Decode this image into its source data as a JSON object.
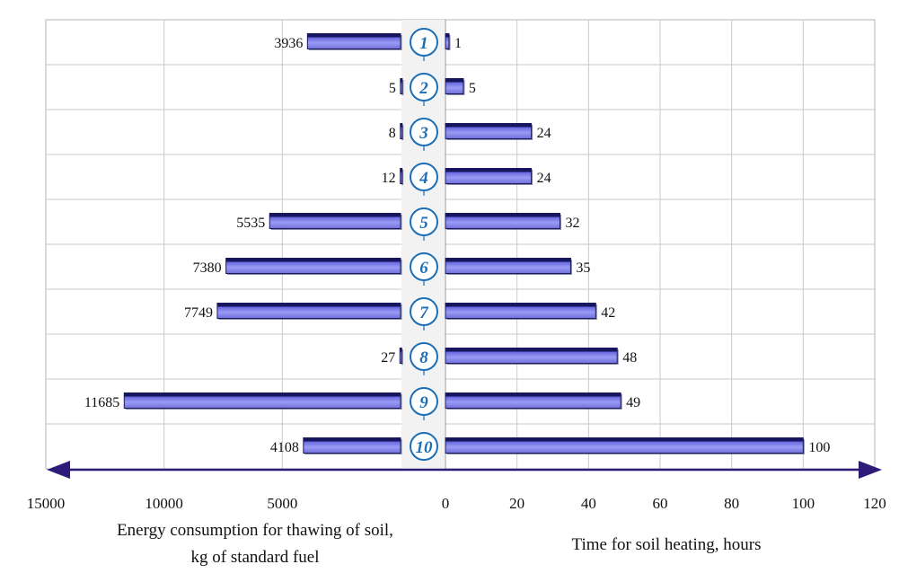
{
  "chart_data": {
    "type": "bar",
    "categories": [
      "1",
      "2",
      "3",
      "4",
      "5",
      "6",
      "7",
      "8",
      "9",
      "10"
    ],
    "series": [
      {
        "values": [
          3936,
          5,
          8,
          12,
          5535,
          7380,
          7749,
          27,
          11685,
          4108
        ]
      },
      {
        "values": [
          1,
          5,
          24,
          24,
          32,
          35,
          42,
          48,
          49,
          100
        ]
      }
    ],
    "left_axis": {
      "label_line1": "Energy consumption for thawing of soil,",
      "label_line2": "kg of standard fuel",
      "ticks": [
        "15000",
        "10000",
        "5000"
      ],
      "range": [
        0,
        15000
      ],
      "direction": "right-to-left"
    },
    "right_axis": {
      "label": "Time for soil heating, hours",
      "ticks": [
        "0",
        "20",
        "40",
        "60",
        "80",
        "100",
        "120"
      ],
      "range": [
        0,
        120
      ]
    },
    "grid": true,
    "colors": {
      "bar_fill": "#8080ee",
      "bar_dark": "#1a1a6e",
      "axis_arrow": "#2e1a78",
      "number_circle": "#1c6fb5"
    }
  }
}
